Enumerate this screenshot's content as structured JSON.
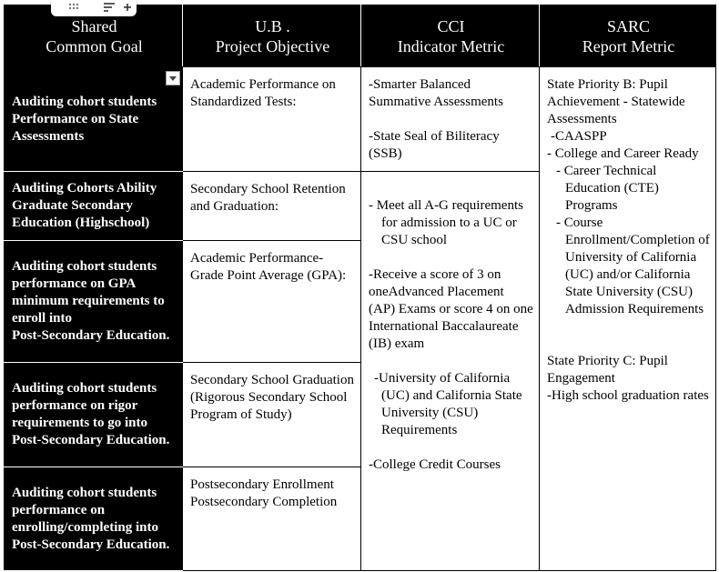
{
  "header": {
    "columns": [
      [
        "Shared",
        "Common Goal"
      ],
      [
        "U.B .",
        "Project Objective"
      ],
      [
        "CCI",
        "Indicator Metric"
      ],
      [
        "SARC",
        "Report Metric"
      ]
    ]
  },
  "table": {
    "goals": [
      [
        "Auditing cohort students Performance on State Assessments"
      ],
      [
        "Auditing Cohorts Ability Graduate Secondary Education (Highschool)"
      ],
      [
        "Auditing cohort students performance on GPA minimum requirements to enroll  into",
        "Post-Secondary Education."
      ],
      [
        "Auditing cohort students performance on rigor requirements to go into",
        "Post-Secondary Education."
      ],
      [
        "Auditing cohort students performance on enrolling/completing into",
        "Post-Secondary Education."
      ]
    ],
    "objectives": [
      "Academic Performance on Standardized Tests:",
      "Secondary School Retention and Graduation:",
      "Academic Performance-Grade Point Average (GPA):",
      "Secondary School Graduation (Rigorous Secondary School Program of Study)",
      "Postsecondary Enrollment Postsecondary Completion"
    ],
    "cci_first": [
      "-Smarter Balanced Summative Assessments",
      "-State Seal of Biliteracy (SSB)"
    ],
    "cci_rest": [
      "- Meet all A-G requirements for admission to a UC or CSU school",
      "-Receive a score of 3 on oneAdvanced Placement (AP) Exams or score 4 on one International Baccalaureate (IB) exam",
      "-University of California (UC) and California State University (CSU) Requirements",
      "-College Credit Courses"
    ],
    "sarc": [
      "State Priority B: Pupil Achievement - Statewide Assessments",
      "-CAASPP",
      "- College and Career Ready",
      "- Career Technical Education (CTE) Programs",
      "- Course Enrollment/Completion of University of California (UC) and/or California State University (CSU) Admission Requirements",
      "State Priority C: Pupil Engagement",
      "-High school graduation rates"
    ]
  }
}
